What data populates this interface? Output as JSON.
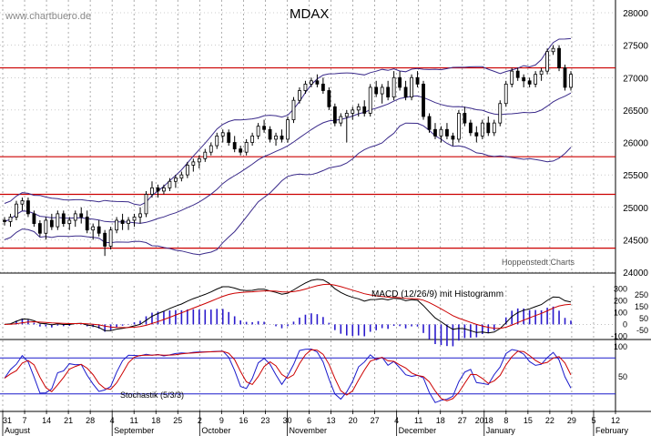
{
  "watermark": "www.chartbuero.de",
  "source": "Hoppenstedt Charts",
  "colors": {
    "price": "#000000",
    "bollinger": "#3a2a8a",
    "support_resistance": "#cc0000",
    "macd": "#000000",
    "signal": "#cc0000",
    "histogram": "#2a1acc",
    "stoch_k": "#1a1acc",
    "stoch_d": "#cc0000",
    "stoch_levels": "#1a1acc",
    "grid": "#999999"
  },
  "chart_data": [
    {
      "type": "candlestick",
      "title": "MDAX",
      "ylim": [
        24000,
        28000
      ],
      "y_ticks": [
        24000,
        24500,
        25000,
        25500,
        26000,
        26500,
        27000,
        27500,
        28000
      ],
      "horizontal_lines": [
        27150,
        25780,
        25200,
        24370
      ],
      "x_tick_labels": [
        "31",
        "7",
        "14",
        "21",
        "28",
        "4",
        "11",
        "18",
        "25",
        "2",
        "9",
        "16",
        "23",
        "30",
        "6",
        "13",
        "20",
        "27",
        "4",
        "11",
        "18",
        "27",
        "2018",
        "8",
        "15",
        "22",
        "29",
        "5",
        "12"
      ],
      "month_labels": [
        "August",
        "September",
        "October",
        "November",
        "December",
        "January",
        "February"
      ],
      "candles": [
        [
          24800,
          24850,
          24720,
          24780
        ],
        [
          24780,
          24900,
          24700,
          24850
        ],
        [
          24850,
          25100,
          24800,
          25050
        ],
        [
          25050,
          25150,
          24950,
          25100
        ],
        [
          25100,
          25150,
          24850,
          24900
        ],
        [
          24900,
          24950,
          24700,
          24750
        ],
        [
          24750,
          24800,
          24550,
          24600
        ],
        [
          24600,
          24850,
          24500,
          24800
        ],
        [
          24800,
          24900,
          24650,
          24700
        ],
        [
          24700,
          24950,
          24650,
          24900
        ],
        [
          24900,
          24950,
          24700,
          24750
        ],
        [
          24750,
          24850,
          24650,
          24800
        ],
        [
          24800,
          24950,
          24700,
          24900
        ],
        [
          24900,
          25000,
          24750,
          24850
        ],
        [
          24850,
          24950,
          24600,
          24650
        ],
        [
          24650,
          24750,
          24500,
          24700
        ],
        [
          24700,
          24800,
          24550,
          24600
        ],
        [
          24600,
          24650,
          24250,
          24400
        ],
        [
          24400,
          24700,
          24350,
          24650
        ],
        [
          24650,
          24850,
          24600,
          24800
        ],
        [
          24800,
          24900,
          24650,
          24750
        ],
        [
          24750,
          24850,
          24650,
          24800
        ],
        [
          24800,
          24900,
          24700,
          24850
        ],
        [
          24850,
          25000,
          24750,
          24900
        ],
        [
          24900,
          25250,
          24850,
          25200
        ],
        [
          25200,
          25400,
          25150,
          25300
        ],
        [
          25300,
          25350,
          25150,
          25250
        ],
        [
          25250,
          25350,
          25200,
          25300
        ],
        [
          25300,
          25450,
          25250,
          25400
        ],
        [
          25400,
          25500,
          25300,
          25450
        ],
        [
          25450,
          25550,
          25400,
          25500
        ],
        [
          25500,
          25700,
          25450,
          25650
        ],
        [
          25650,
          25750,
          25550,
          25700
        ],
        [
          25700,
          25800,
          25600,
          25750
        ],
        [
          25750,
          25900,
          25700,
          25850
        ],
        [
          25850,
          26000,
          25800,
          25950
        ],
        [
          25950,
          26150,
          25900,
          26100
        ],
        [
          26100,
          26200,
          26000,
          26150
        ],
        [
          26150,
          26200,
          25950,
          26000
        ],
        [
          26000,
          26100,
          25850,
          25900
        ],
        [
          25900,
          25950,
          25800,
          25850
        ],
        [
          25850,
          26050,
          25800,
          26000
        ],
        [
          26000,
          26150,
          25950,
          26100
        ],
        [
          26100,
          26300,
          26050,
          26250
        ],
        [
          26250,
          26350,
          26150,
          26200
        ],
        [
          26200,
          26250,
          26000,
          26050
        ],
        [
          26050,
          26150,
          25950,
          26100
        ],
        [
          26100,
          26200,
          26000,
          26050
        ],
        [
          26050,
          26400,
          26000,
          26350
        ],
        [
          26350,
          26700,
          26300,
          26650
        ],
        [
          26650,
          26850,
          26600,
          26800
        ],
        [
          26800,
          26950,
          26750,
          26900
        ],
        [
          26900,
          27000,
          26850,
          26950
        ],
        [
          26950,
          27050,
          26850,
          26900
        ],
        [
          26900,
          27000,
          26750,
          26800
        ],
        [
          26800,
          26850,
          26500,
          26550
        ],
        [
          26550,
          26600,
          26250,
          26300
        ],
        [
          26300,
          26450,
          26250,
          26400
        ],
        [
          26400,
          26500,
          26000,
          26450
        ],
        [
          26450,
          26550,
          26350,
          26500
        ],
        [
          26500,
          26600,
          26400,
          26550
        ],
        [
          26550,
          26650,
          26400,
          26450
        ],
        [
          26450,
          26900,
          26400,
          26850
        ],
        [
          26850,
          26950,
          26700,
          26750
        ],
        [
          26750,
          26900,
          26600,
          26850
        ],
        [
          26850,
          26950,
          26650,
          26700
        ],
        [
          26700,
          27100,
          26650,
          27000
        ],
        [
          27000,
          27100,
          26800,
          26850
        ],
        [
          26850,
          26950,
          26650,
          26700
        ],
        [
          26700,
          27050,
          26650,
          27000
        ],
        [
          27000,
          27100,
          26850,
          26900
        ],
        [
          26900,
          26950,
          26350,
          26400
        ],
        [
          26400,
          26450,
          26150,
          26200
        ],
        [
          26200,
          26300,
          26050,
          26100
        ],
        [
          26100,
          26250,
          26000,
          26200
        ],
        [
          26200,
          26300,
          26050,
          26100
        ],
        [
          26100,
          26150,
          25950,
          26050
        ],
        [
          26050,
          26500,
          26000,
          26450
        ],
        [
          26450,
          26550,
          26250,
          26300
        ],
        [
          26300,
          26350,
          26100,
          26150
        ],
        [
          26150,
          26250,
          26000,
          26100
        ],
        [
          26100,
          26350,
          26050,
          26300
        ],
        [
          26300,
          26400,
          26100,
          26150
        ],
        [
          26150,
          26350,
          26100,
          26300
        ],
        [
          26300,
          26650,
          26250,
          26600
        ],
        [
          26600,
          26950,
          26550,
          26900
        ],
        [
          26900,
          27150,
          26850,
          27100
        ],
        [
          27100,
          27150,
          26950,
          27000
        ],
        [
          27000,
          27050,
          26850,
          26950
        ],
        [
          26950,
          27000,
          26850,
          26900
        ],
        [
          26900,
          27100,
          26850,
          27050
        ],
        [
          27050,
          27150,
          26950,
          27100
        ],
        [
          27100,
          27450,
          27050,
          27400
        ],
        [
          27400,
          27500,
          27350,
          27450
        ],
        [
          27450,
          27500,
          27100,
          27150
        ],
        [
          27150,
          27200,
          26800,
          26850
        ],
        [
          26850,
          27100,
          26800,
          27050
        ]
      ]
    },
    {
      "type": "line",
      "title": "MACD (12/26/9) mit Histogramm",
      "ylim": [
        -120,
        280
      ],
      "y_ticks": [
        -100,
        0,
        100,
        200,
        300
      ],
      "y_tick_labels": [
        "-100",
        "0",
        "100",
        "200",
        "300"
      ],
      "y_ticks_minor": [
        -50,
        50,
        150,
        250
      ],
      "y_tick_minor_labels": [
        "-50",
        "50",
        "150",
        "250"
      ]
    },
    {
      "type": "line",
      "title": "Stochastik (5/3/3)",
      "ylim": [
        0,
        100
      ],
      "y_ticks": [
        50,
        100
      ],
      "horizontal_lines": [
        80,
        20
      ]
    }
  ]
}
